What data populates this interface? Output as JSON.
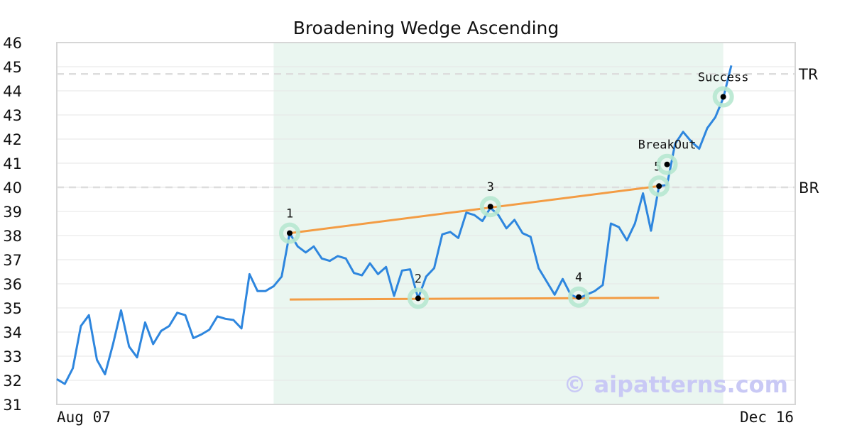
{
  "chart_data": {
    "type": "line",
    "title": "Broadening Wedge Ascending",
    "xlabel": "",
    "ylabel": "",
    "x_tick_labels": [
      "Aug 07",
      "Dec 16"
    ],
    "ylim": [
      31,
      46
    ],
    "y_ticks": [
      31,
      32,
      33,
      34,
      35,
      36,
      37,
      38,
      39,
      40,
      41,
      42,
      43,
      44,
      45,
      46
    ],
    "grid": true,
    "series": [
      {
        "color": "#2e86de",
        "values": [
          32.05,
          31.85,
          32.5,
          34.25,
          34.7,
          32.85,
          32.25,
          33.5,
          34.9,
          33.4,
          32.95,
          34.4,
          33.5,
          34.05,
          34.25,
          34.8,
          34.7,
          33.75,
          33.9,
          34.1,
          34.65,
          34.55,
          34.5,
          34.15,
          36.4,
          35.7,
          35.7,
          35.9,
          36.3,
          38.1,
          37.55,
          37.3,
          37.55,
          37.05,
          36.95,
          37.15,
          37.05,
          36.45,
          36.35,
          36.85,
          36.4,
          36.7,
          35.5,
          36.55,
          36.6,
          35.4,
          36.3,
          36.65,
          38.05,
          38.15,
          37.9,
          38.95,
          38.85,
          38.6,
          39.15,
          38.85,
          38.3,
          38.65,
          38.1,
          37.95,
          36.65,
          36.1,
          35.55,
          36.2,
          35.55,
          35.4,
          35.55,
          35.7,
          35.95,
          38.5,
          38.35,
          37.8,
          38.5,
          39.75,
          38.2,
          40.05,
          40.1,
          41.8,
          42.3,
          41.9,
          41.6,
          42.45,
          42.9,
          43.7,
          45.05
        ]
      }
    ],
    "highlight_range": {
      "start_index": 27,
      "end_index": 83,
      "color": "#eaf6f0"
    },
    "reference_lines": [
      {
        "label": "TR",
        "value": 44.7,
        "color": "#dddddd"
      },
      {
        "label": "BR",
        "value": 40.0,
        "color": "#dddddd"
      }
    ],
    "trend_lines": [
      {
        "name": "upper",
        "color": "#f39c44",
        "from": {
          "index": 29,
          "value": 38.1
        },
        "to": {
          "index": 75,
          "value": 40.05
        }
      },
      {
        "name": "lower",
        "color": "#f39c44",
        "from": {
          "index": 29,
          "value": 35.35
        },
        "to": {
          "index": 75,
          "value": 35.42
        }
      }
    ],
    "markers": [
      {
        "label": "1",
        "index": 29,
        "value": 38.1,
        "label_pos": "above"
      },
      {
        "label": "2",
        "index": 45,
        "value": 35.4,
        "label_pos": "above"
      },
      {
        "label": "3",
        "index": 54,
        "value": 39.2,
        "label_pos": "above"
      },
      {
        "label": "4",
        "index": 65,
        "value": 35.45,
        "label_pos": "above"
      },
      {
        "label": "5",
        "index": 75,
        "value": 40.05,
        "label_pos": "above-left"
      },
      {
        "label": "BreakOut",
        "index": 76,
        "value": 40.95,
        "label_pos": "above"
      },
      {
        "label": "Success",
        "index": 83,
        "value": 43.75,
        "label_pos": "above"
      }
    ],
    "watermark": "© aipatterns.com"
  }
}
